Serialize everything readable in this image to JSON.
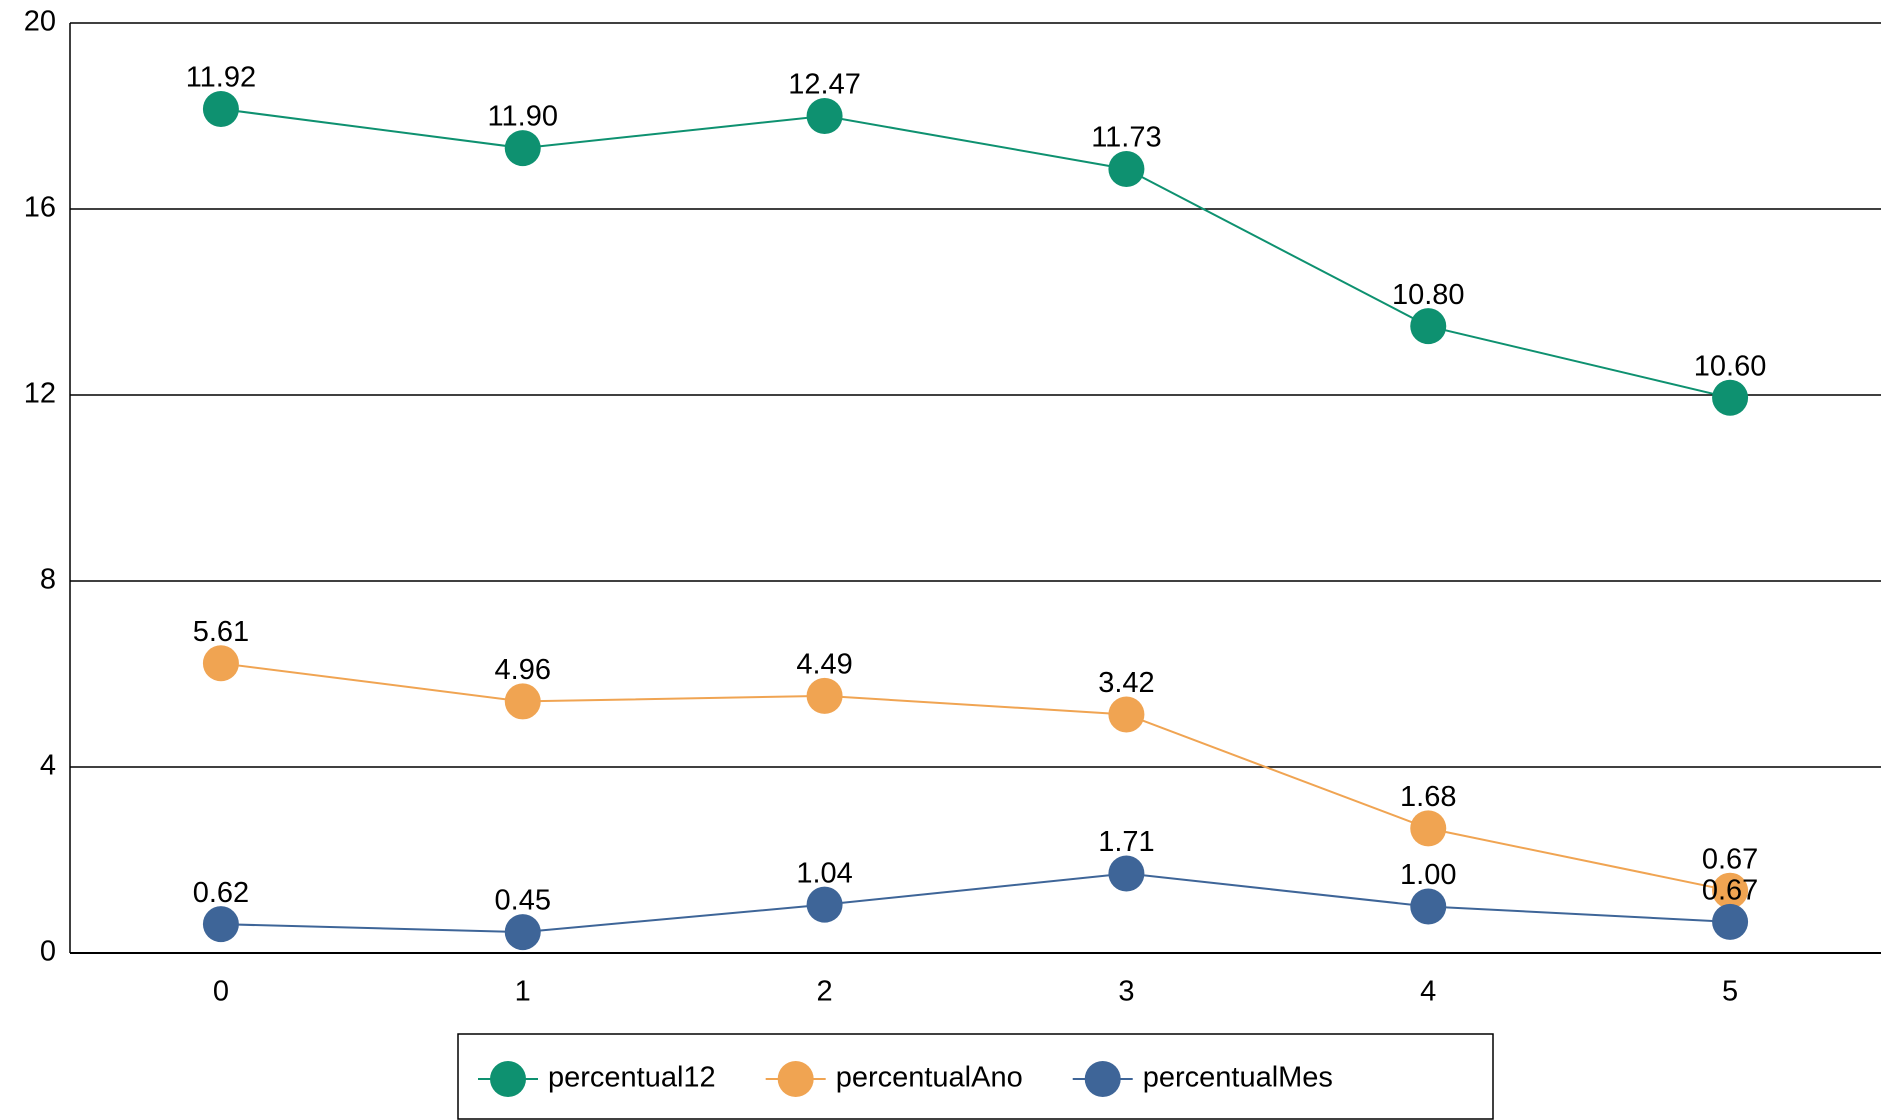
{
  "chart_data": {
    "type": "line",
    "stacked": true,
    "categories": [
      "0",
      "1",
      "2",
      "3",
      "4",
      "5"
    ],
    "series": [
      {
        "name": "percentual12",
        "color": "#0e9170",
        "values": [
          11.92,
          11.9,
          12.47,
          11.73,
          10.8,
          10.6
        ],
        "value_labels": [
          "11.92",
          "11.90",
          "12.47",
          "11.73",
          "10.80",
          "10.60"
        ]
      },
      {
        "name": "percentualAno",
        "color": "#f0a452",
        "values": [
          5.61,
          4.96,
          4.49,
          3.42,
          1.68,
          0.67
        ],
        "value_labels": [
          "5.61",
          "4.96",
          "4.49",
          "3.42",
          "1.68",
          "0.67"
        ]
      },
      {
        "name": "percentualMes",
        "color": "#3e6598",
        "values": [
          0.62,
          0.45,
          1.04,
          1.71,
          1.0,
          0.67
        ],
        "value_labels": [
          "0.62",
          "0.45",
          "1.04",
          "1.71",
          "1.00",
          "0.67"
        ]
      }
    ],
    "ylim": [
      0,
      20
    ],
    "yticks": [
      0,
      4,
      8,
      12,
      16,
      20
    ],
    "grid": true,
    "legend": "bottom"
  }
}
